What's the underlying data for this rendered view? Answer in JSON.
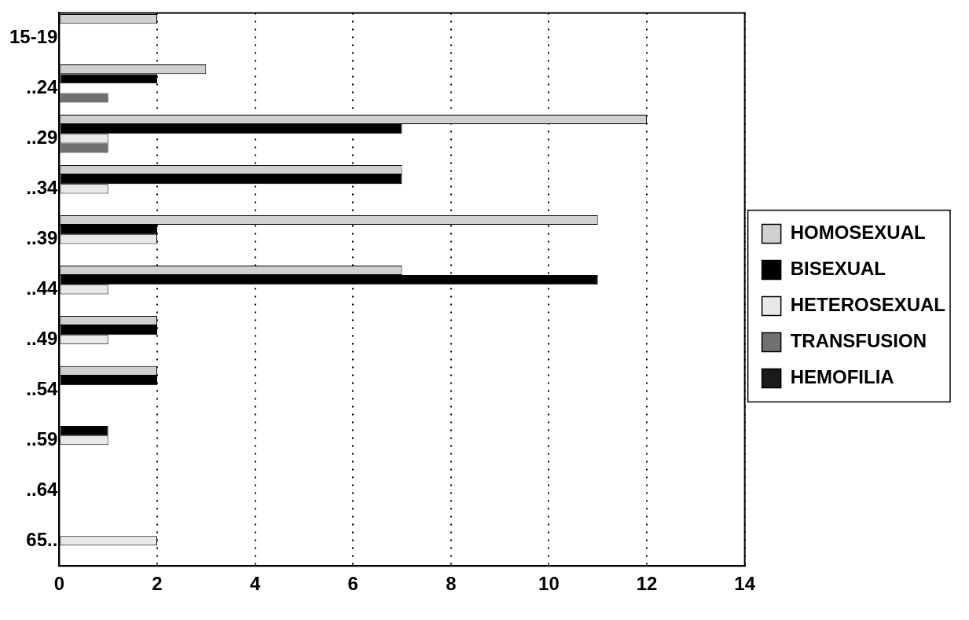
{
  "chart_data": {
    "type": "bar",
    "orientation": "horizontal",
    "categories": [
      "15-19",
      "..24",
      "..29",
      "..34",
      "..39",
      "..44",
      "..49",
      "..54",
      "..59",
      "..64",
      "65.."
    ],
    "series": [
      {
        "name": "HOMOSEXUAL",
        "color": "#d0d0d0",
        "values": [
          2,
          3,
          12,
          7,
          11,
          7,
          2,
          2,
          null,
          null,
          null
        ]
      },
      {
        "name": "BISEXUAL",
        "color": "#000000",
        "values": [
          null,
          2,
          7,
          7,
          2,
          11,
          2,
          2,
          1,
          null,
          null
        ]
      },
      {
        "name": "HETEROSEXUAL",
        "color": "#e8e8e8",
        "values": [
          null,
          null,
          1,
          1,
          2,
          1,
          1,
          null,
          1,
          null,
          2
        ]
      },
      {
        "name": "TRANSFUSION",
        "color": "#707070",
        "values": [
          null,
          1,
          1,
          null,
          null,
          null,
          null,
          null,
          null,
          null,
          null
        ]
      },
      {
        "name": "HEMOFILIA",
        "color": "#1a1a1a",
        "values": [
          null,
          null,
          null,
          null,
          null,
          null,
          null,
          null,
          null,
          null,
          null
        ]
      }
    ],
    "xlim": [
      0,
      14
    ],
    "xticks": [
      0,
      2,
      4,
      6,
      8,
      10,
      12,
      14
    ],
    "grid": "x",
    "legend": "right"
  }
}
